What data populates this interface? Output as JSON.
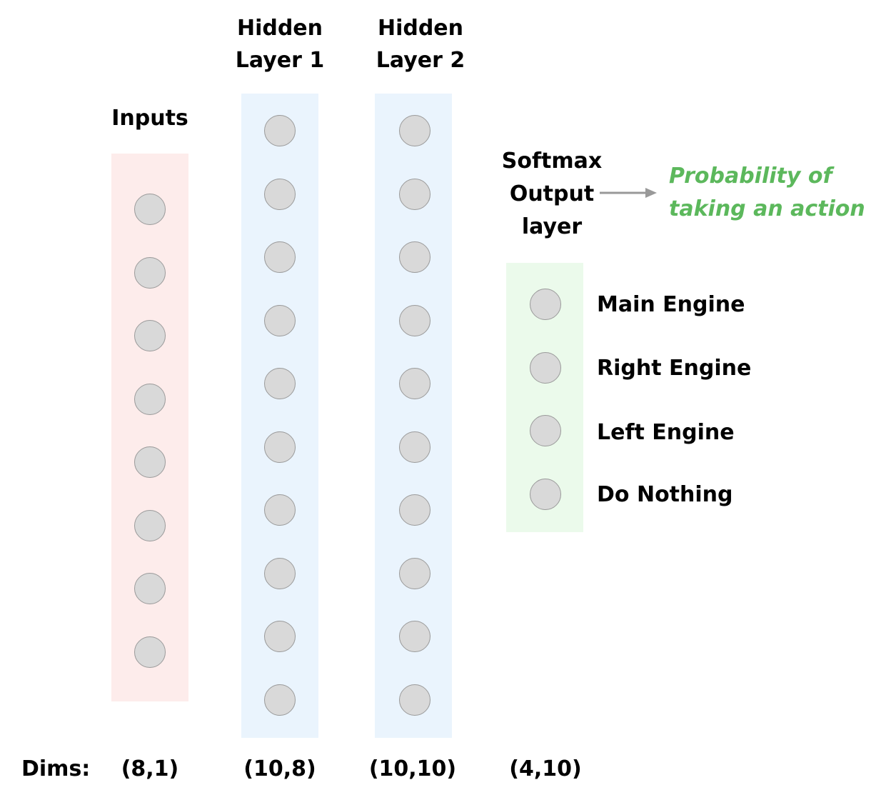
{
  "layers": [
    {
      "id": "inputs",
      "title": "Inputs",
      "dims": "(8,1)",
      "node_count": 8,
      "bg_color": "#fdeceb"
    },
    {
      "id": "hidden-1",
      "title": "Hidden Layer 1",
      "title_lines": [
        "Hidden",
        "Layer 1"
      ],
      "dims": "(10,8)",
      "node_count": 10,
      "bg_color": "#eaf4fd"
    },
    {
      "id": "hidden-2",
      "title": "Hidden Layer 2",
      "title_lines": [
        "Hidden",
        "Layer 2"
      ],
      "dims": "(10,10)",
      "node_count": 10,
      "bg_color": "#eaf4fd"
    },
    {
      "id": "output",
      "title": "Softmax Output layer",
      "title_lines": [
        "Softmax",
        "Output",
        "layer"
      ],
      "dims": "(4,10)",
      "node_count": 4,
      "bg_color": "#ebfaeb"
    }
  ],
  "dims_label": "Dims:",
  "output_actions": [
    "Main Engine",
    "Right Engine",
    "Left Engine",
    "Do Nothing"
  ],
  "annotation": {
    "lines": [
      "Probability of",
      "taking an action"
    ],
    "color": "#5cb85c"
  },
  "arrow_color": "#999999",
  "node_fill": "#d9d9d9",
  "node_stroke": "#9a9a9a"
}
